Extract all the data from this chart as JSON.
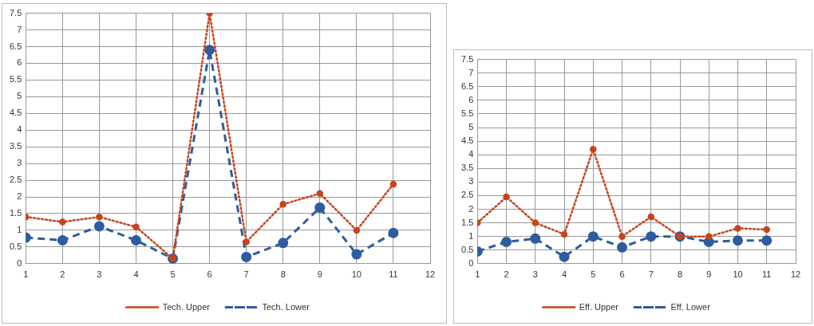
{
  "chart_data": [
    {
      "type": "line",
      "x": [
        1,
        2,
        3,
        4,
        5,
        6,
        7,
        8,
        9,
        10,
        11
      ],
      "xlim": [
        1,
        12
      ],
      "xticks": [
        1,
        2,
        3,
        4,
        5,
        6,
        7,
        8,
        9,
        10,
        11,
        12
      ],
      "ylim": [
        0,
        7.5
      ],
      "yticks": [
        0,
        0.5,
        1,
        1.5,
        2,
        2.5,
        3,
        3.5,
        4,
        4.5,
        5,
        5.5,
        6,
        6.5,
        7,
        7.5
      ],
      "grid": true,
      "legend": "bottom",
      "marker": "circle",
      "series": [
        {
          "name": "Tech. Lower",
          "color": "#2e5c9e",
          "line_style": "dashed",
          "values": [
            0.78,
            0.7,
            1.12,
            0.7,
            0.15,
            6.4,
            0.2,
            0.62,
            1.68,
            0.28,
            0.92
          ]
        },
        {
          "name": "Tech. Upper",
          "color": "#c8441c",
          "line_style": "dotted",
          "values": [
            1.4,
            1.25,
            1.4,
            1.1,
            0.15,
            7.5,
            0.65,
            1.78,
            2.1,
            1.0,
            2.38
          ]
        }
      ]
    },
    {
      "type": "line",
      "x": [
        1,
        2,
        3,
        4,
        5,
        6,
        7,
        8,
        9,
        10,
        11
      ],
      "xlim": [
        1,
        12
      ],
      "xticks": [
        1,
        2,
        3,
        4,
        5,
        6,
        7,
        8,
        9,
        10,
        11,
        12
      ],
      "ylim": [
        0,
        7.5
      ],
      "yticks": [
        0,
        0.5,
        1,
        1.5,
        2,
        2.5,
        3,
        3.5,
        4,
        4.5,
        5,
        5.5,
        6,
        6.5,
        7,
        7.5
      ],
      "grid": true,
      "legend": "bottom",
      "marker": "circle",
      "series": [
        {
          "name": "Eff. Lower",
          "color": "#2e5c9e",
          "line_style": "dashed",
          "values": [
            0.45,
            0.8,
            0.92,
            0.25,
            1.0,
            0.6,
            1.0,
            1.0,
            0.8,
            0.85,
            0.85
          ]
        },
        {
          "name": "Eff. Upper",
          "color": "#c8441c",
          "line_style": "dotted",
          "values": [
            1.5,
            2.45,
            1.5,
            1.08,
            4.2,
            1.0,
            1.72,
            1.0,
            1.0,
            1.3,
            1.25
          ]
        }
      ]
    }
  ]
}
